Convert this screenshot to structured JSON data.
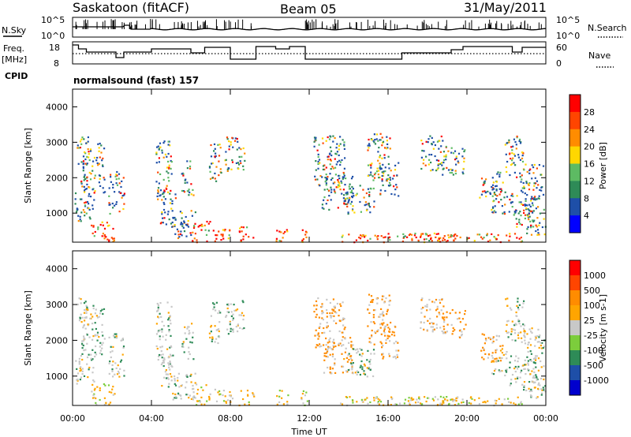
{
  "header": {
    "title": "Saskatoon (fitACF)",
    "beam": "Beam 05",
    "date": "31/May/2011"
  },
  "status_panels": {
    "nsky_label": "N.Sky",
    "nsky_ticks": [
      "10^5",
      "10^0"
    ],
    "nsearch_label": "N.Search",
    "nsearch_ticks": [
      "10^5",
      "10^0"
    ],
    "freq_label_1": "Freq.",
    "freq_label_2": "[MHz]",
    "freq_ticks": [
      "18",
      "8"
    ],
    "nave_label": "Nave",
    "nave_ticks": [
      "60",
      "0"
    ],
    "cpid_label": "CPID",
    "cpid_value": "normalsound (fast) 157"
  },
  "chart_data": [
    {
      "type": "heatmap",
      "panel": "power",
      "ylabel": "Slant Range [km]",
      "yticks": [
        "1000",
        "2000",
        "3000",
        "4000"
      ],
      "ylim": [
        180,
        4500
      ],
      "xlim": [
        0,
        24
      ],
      "colorbar_label": "Power [dB]",
      "colorbar_ticks": [
        "28",
        "24",
        "20",
        "16",
        "12",
        "8",
        "4"
      ],
      "colors": [
        "#0000ff",
        "#1e4fa8",
        "#2e8b57",
        "#5dbb63",
        "#ffd700",
        "#ff8c00",
        "#ff4500",
        "#ff0000"
      ]
    },
    {
      "type": "heatmap",
      "panel": "velocity",
      "ylabel": "Slant Range [km]",
      "yticks": [
        "1000",
        "2000",
        "3000",
        "4000"
      ],
      "ylim": [
        180,
        4500
      ],
      "xlim": [
        0,
        24
      ],
      "xlabel": "Time UT",
      "xticks": [
        "00:00",
        "04:00",
        "08:00",
        "12:00",
        "16:00",
        "20:00",
        "00:00"
      ],
      "colorbar_label": "Velocity [m s-1]",
      "colorbar_ticks": [
        "1000",
        "500",
        "100",
        "25",
        "-25",
        "-100",
        "-500",
        "-1000"
      ],
      "colors": [
        "#0000cd",
        "#1e4fa8",
        "#2e8b57",
        "#7ccd3c",
        "#c8c8c8",
        "#ffa500",
        "#ff8c00",
        "#ff4500",
        "#ff0000"
      ]
    }
  ]
}
